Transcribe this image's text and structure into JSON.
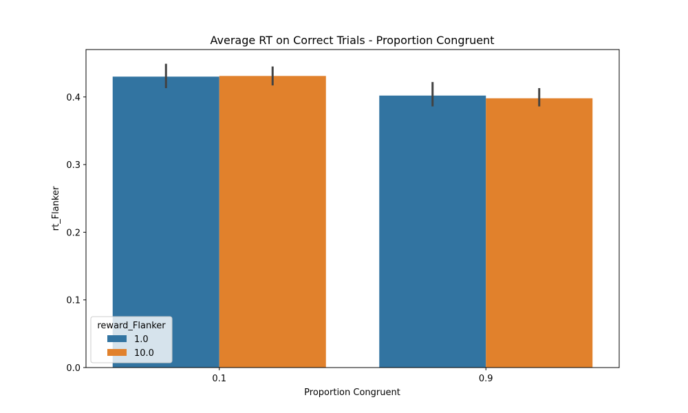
{
  "chart_data": {
    "type": "bar",
    "title": "Average RT on Correct Trials - Proportion Congruent",
    "xlabel": "Proportion Congruent",
    "ylabel": "rt_Flanker",
    "categories": [
      "0.1",
      "0.9"
    ],
    "ylim": [
      0,
      0.47
    ],
    "yticks": [
      0.0,
      0.1,
      0.2,
      0.3,
      0.4
    ],
    "ytick_labels": [
      "0.0",
      "0.1",
      "0.2",
      "0.3",
      "0.4"
    ],
    "grid": false,
    "legend": {
      "title": "reward_Flanker",
      "position": "lower-left"
    },
    "series": [
      {
        "name": "1.0",
        "color": "#3274a1",
        "values": [
          0.43,
          0.402
        ],
        "error_low": [
          0.413,
          0.386
        ],
        "error_high": [
          0.449,
          0.422
        ]
      },
      {
        "name": "10.0",
        "color": "#e1812c",
        "values": [
          0.431,
          0.398
        ],
        "error_low": [
          0.417,
          0.386
        ],
        "error_high": [
          0.445,
          0.413
        ]
      }
    ]
  }
}
